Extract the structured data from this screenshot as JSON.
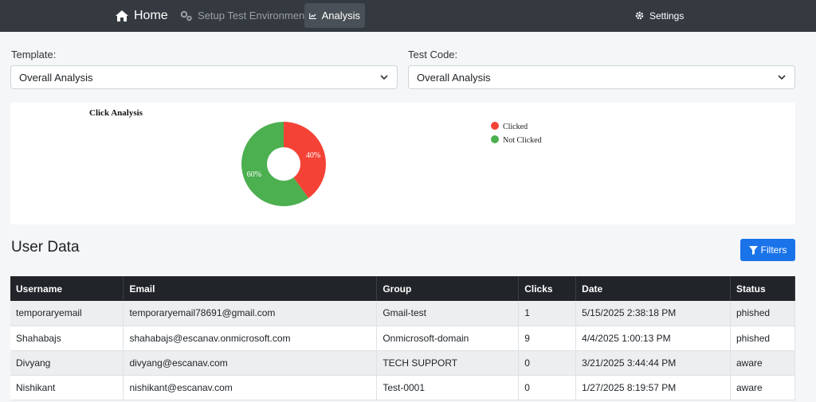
{
  "nav": {
    "home": "Home",
    "setup": "Setup Test Environment",
    "analysis": "Analysis",
    "settings": "Settings"
  },
  "filters": {
    "template_label": "Template:",
    "template_value": "Overall Analysis",
    "testcode_label": "Test Code:",
    "testcode_value": "Overall Analysis"
  },
  "chart_data": {
    "type": "pie",
    "title": "Click Analysis",
    "legend_position": "right",
    "slices": [
      {
        "label": "Clicked",
        "value": 40,
        "display": "40%",
        "color": "#f44336"
      },
      {
        "label": "Not Clicked",
        "value": 60,
        "display": "60%",
        "color": "#4caf50"
      }
    ]
  },
  "user_data": {
    "title": "User Data",
    "filters_button": "Filters",
    "columns": [
      "Username",
      "Email",
      "Group",
      "Clicks",
      "Date",
      "Status"
    ],
    "rows": [
      [
        "temporaryemail",
        "temporaryemail78691@gmail.com",
        "Gmail-test",
        "1",
        "5/15/2025 2:38:18 PM",
        "phished"
      ],
      [
        "Shahabajs",
        "shahabajs@escanav.onmicrosoft.com",
        "Onmicrosoft-domain",
        "9",
        "4/4/2025 1:00:13 PM",
        "phished"
      ],
      [
        "Divyang",
        "divyang@escanav.com",
        "TECH SUPPORT",
        "0",
        "3/21/2025 3:44:44 PM",
        "aware"
      ],
      [
        "Nishikant",
        "nishikant@escanav.com",
        "Test-0001",
        "0",
        "1/27/2025 8:19:57 PM",
        "aware"
      ]
    ]
  }
}
